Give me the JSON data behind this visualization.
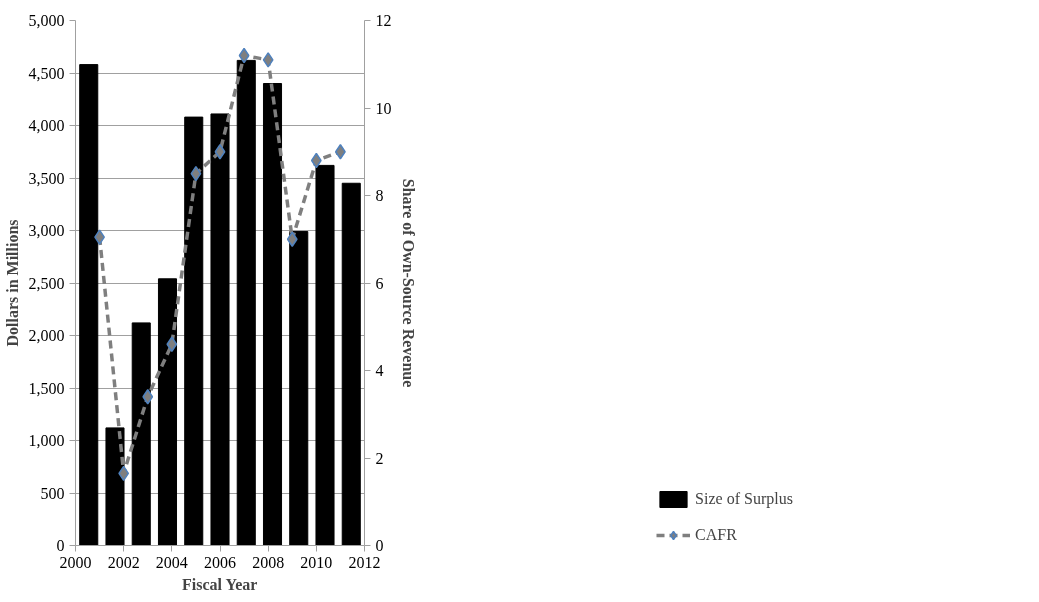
{
  "chart_data": {
    "type": "bar",
    "xlabel": "Fiscal Year",
    "ylabel": "Dollars in Millions",
    "y2label": "Share of Own-Source Revenue",
    "xlim": [
      2000,
      2012
    ],
    "xticks": [
      2000,
      2002,
      2004,
      2006,
      2008,
      2010,
      2012
    ],
    "ylim": [
      0,
      5000
    ],
    "yticks": [
      {
        "value": 0,
        "label": "0"
      },
      {
        "value": 500,
        "label": "500"
      },
      {
        "value": 1000,
        "label": "1,000"
      },
      {
        "value": 1500,
        "label": "1,500"
      },
      {
        "value": 2000,
        "label": "2,000"
      },
      {
        "value": 2500,
        "label": "2,500"
      },
      {
        "value": 3000,
        "label": "3,000"
      },
      {
        "value": 3500,
        "label": "3,500"
      },
      {
        "value": 4000,
        "label": "4,000"
      },
      {
        "value": 4500,
        "label": "4,500"
      },
      {
        "value": 5000,
        "label": "5,000"
      }
    ],
    "y2lim": [
      0,
      12
    ],
    "y2ticks": [
      0,
      2,
      4,
      6,
      8,
      10,
      12
    ],
    "grid": "y",
    "legend": "bottom right",
    "series": [
      {
        "name": "Size of Surplus",
        "color": "#000000",
        "x": [
          2000.55,
          2001.64,
          2002.73,
          2003.82,
          2004.91,
          2006.0,
          2007.09,
          2008.18,
          2009.27,
          2010.36,
          2011.45
        ],
        "values": [
          4580,
          1120,
          2120,
          2540,
          4080,
          4110,
          4620,
          4400,
          2990,
          3620,
          3450
        ]
      },
      {
        "name": "CAFR",
        "type": "line",
        "axis": "y2",
        "color": "#7f7f7f",
        "marker": "diamond",
        "line_style": "dashed",
        "x": [
          2001,
          2002,
          2003,
          2004,
          2005,
          2006,
          2007,
          2008,
          2009,
          2010,
          2011
        ],
        "values": [
          7.05,
          1.65,
          3.4,
          4.6,
          8.5,
          9.0,
          11.2,
          11.1,
          7.0,
          8.8,
          9.0
        ]
      }
    ]
  }
}
